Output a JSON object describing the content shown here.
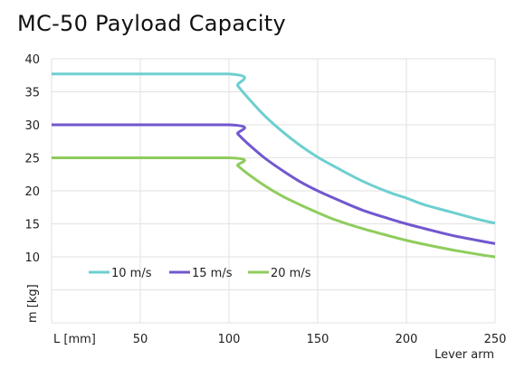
{
  "chart_data": {
    "type": "line",
    "title": "MC-50 Payload Capacity",
    "xlabel": "Lever arm",
    "x_unit_label": "L [mm]",
    "ylabel": "m [kg]",
    "xlim": [
      0,
      250
    ],
    "ylim": [
      0,
      40
    ],
    "x_ticks": [
      50,
      100,
      150,
      200,
      250
    ],
    "y_ticks": [
      10,
      15,
      20,
      25,
      30,
      35,
      40
    ],
    "grid": true,
    "legend_position": "bottom-left",
    "x": [
      0,
      100,
      105,
      110,
      120,
      130,
      140,
      150,
      160,
      175,
      190,
      200,
      210,
      225,
      240,
      250
    ],
    "series": [
      {
        "name": "10 m/s",
        "color": "#6ecfcf",
        "values": [
          37.7,
          37.7,
          35.9,
          34.3,
          31.4,
          29.0,
          26.9,
          25.1,
          23.6,
          21.5,
          19.8,
          18.9,
          17.9,
          16.8,
          15.7,
          15.1
        ]
      },
      {
        "name": "15 m/s",
        "color": "#7257cf",
        "values": [
          30.0,
          30.0,
          28.6,
          27.3,
          25.0,
          23.1,
          21.4,
          20.0,
          18.8,
          17.1,
          15.8,
          15.0,
          14.3,
          13.3,
          12.5,
          12.0
        ]
      },
      {
        "name": "20 m/s",
        "color": "#8fcc5c",
        "values": [
          25.0,
          25.0,
          23.8,
          22.7,
          20.8,
          19.2,
          17.9,
          16.7,
          15.6,
          14.3,
          13.2,
          12.5,
          11.9,
          11.1,
          10.4,
          10.0
        ]
      }
    ]
  }
}
